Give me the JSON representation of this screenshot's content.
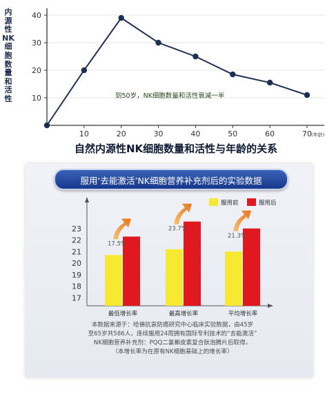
{
  "chart_data": [
    {
      "type": "line",
      "ylabel": "内源性NK细胞数量和活性",
      "xlabel": "(年龄)",
      "title": "自然内源性NK细胞数量和活性与年龄的关系",
      "x": [
        0,
        10,
        20,
        30,
        40,
        50,
        60,
        70
      ],
      "y": [
        0,
        20,
        39,
        30,
        25,
        18.5,
        15.5,
        11
      ],
      "xticks": [
        "10",
        "20",
        "30",
        "40",
        "50",
        "60",
        "70"
      ],
      "yticks": [
        "10",
        "20",
        "30",
        "40"
      ],
      "xlim": [
        0,
        70
      ],
      "ylim": [
        0,
        40
      ],
      "annotation": "到50岁，NK细胞数量和活性衰减一半",
      "line_color": "#1e2f55"
    },
    {
      "type": "bar",
      "title": "服用‘去能激活’NK细胞营养补充剂后的实验数据",
      "categories": [
        "最低增长率",
        "最高增长率",
        "平均增长率"
      ],
      "series": [
        {
          "name": "服用前",
          "values": [
            20.7,
            21.2,
            21.0
          ],
          "color": "#f7e832"
        },
        {
          "name": "服用后",
          "values": [
            22.3,
            23.6,
            23.0
          ],
          "color": "#e0181f"
        }
      ],
      "yticks": [
        "17",
        "18",
        "19",
        "20",
        "21",
        "22",
        "23"
      ],
      "ylim": [
        16.3,
        24.3
      ],
      "growth_labels": [
        "17.5%",
        "23.7%",
        "21.3%"
      ],
      "legend_position": "top-right"
    }
  ],
  "notes": [
    "本数据来源于：哈佛抗衰防癌研究中心临床实验数据，由45岁",
    "至65岁共586人，连续服用24周拥有国际专利技术的“去能激活”",
    "NK细胞营养补充剂：PQQ二氯槲皮素复合肽泡腾片后取得。",
    "（本增长率为在原有NK细胞基础上的增长率）"
  ]
}
